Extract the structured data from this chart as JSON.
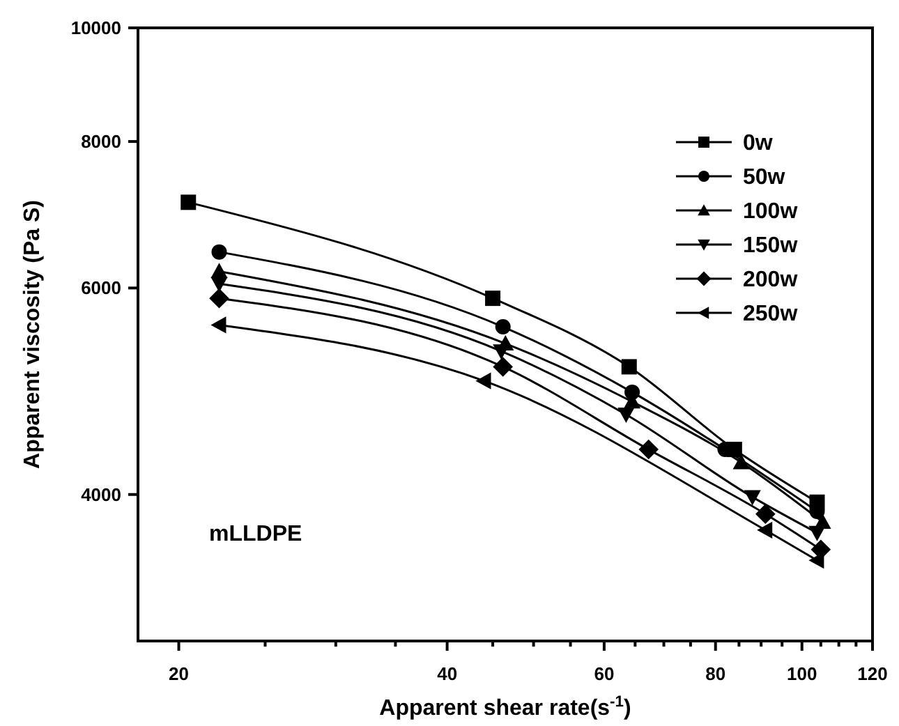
{
  "chart_data": {
    "type": "line",
    "xlabel": "Apparent shear rate(s$^{-1}$)",
    "ylabel": "Apparent viscosity (Pa S)",
    "log": "xy",
    "xlim": [
      18,
      120
    ],
    "ylim": [
      3000,
      10000
    ],
    "xticks": [
      20,
      {
        "value": 25,
        "label": null
      },
      {
        "value": 30,
        "label": null
      },
      {
        "value": 35,
        "label": null
      },
      40,
      {
        "value": 45,
        "label": null
      },
      {
        "value": 50,
        "label": null
      },
      {
        "value": 55,
        "label": null
      },
      60,
      {
        "value": 65,
        "label": null
      },
      {
        "value": 70,
        "label": null
      },
      {
        "value": 75,
        "label": null
      },
      80,
      {
        "value": 85,
        "label": null
      },
      {
        "value": 90,
        "label": null
      },
      {
        "value": 95,
        "label": null
      },
      100,
      {
        "value": 105,
        "label": null
      },
      {
        "value": 110,
        "label": null
      },
      {
        "value": 115,
        "label": null
      },
      120
    ],
    "yticks": [
      4000,
      6000,
      8000,
      10000
    ],
    "legend": "top right",
    "grid": false,
    "annotations": [
      "mLLDPE"
    ],
    "series": [
      {
        "name": "0w",
        "color": "#000000",
        "marker": "square",
        "x": [
          20.5,
          45,
          64,
          84,
          104
        ],
        "values": [
          7100,
          5880,
          5140,
          4370,
          3940
        ]
      },
      {
        "name": "50w",
        "color": "#000000",
        "marker": "circle",
        "x": [
          22.2,
          46.2,
          64.5,
          82,
          104
        ],
        "values": [
          6440,
          5560,
          4890,
          4370,
          3870
        ]
      },
      {
        "name": "100w",
        "color": "#000000",
        "marker": "triangle",
        "x": [
          22.2,
          46.5,
          64.5,
          85.5,
          105.5
        ],
        "values": [
          6200,
          5380,
          4800,
          4260,
          3790
        ]
      },
      {
        "name": "150w",
        "color": "#000000",
        "marker": "triangle-down",
        "x": [
          22.2,
          46,
          63.5,
          88,
          104
        ],
        "values": [
          6050,
          5300,
          4680,
          3980,
          3710
        ]
      },
      {
        "name": "200w",
        "color": "#000000",
        "marker": "diamond",
        "x": [
          22.2,
          46.2,
          67.3,
          91,
          105
        ],
        "values": [
          5880,
          5140,
          4370,
          3850,
          3590
        ]
      },
      {
        "name": "250w",
        "color": "#000000",
        "marker": "triangle-left",
        "x": [
          22.2,
          44,
          67,
          91,
          104
        ],
        "values": [
          5580,
          5000,
          null,
          3730,
          3515
        ]
      }
    ]
  }
}
